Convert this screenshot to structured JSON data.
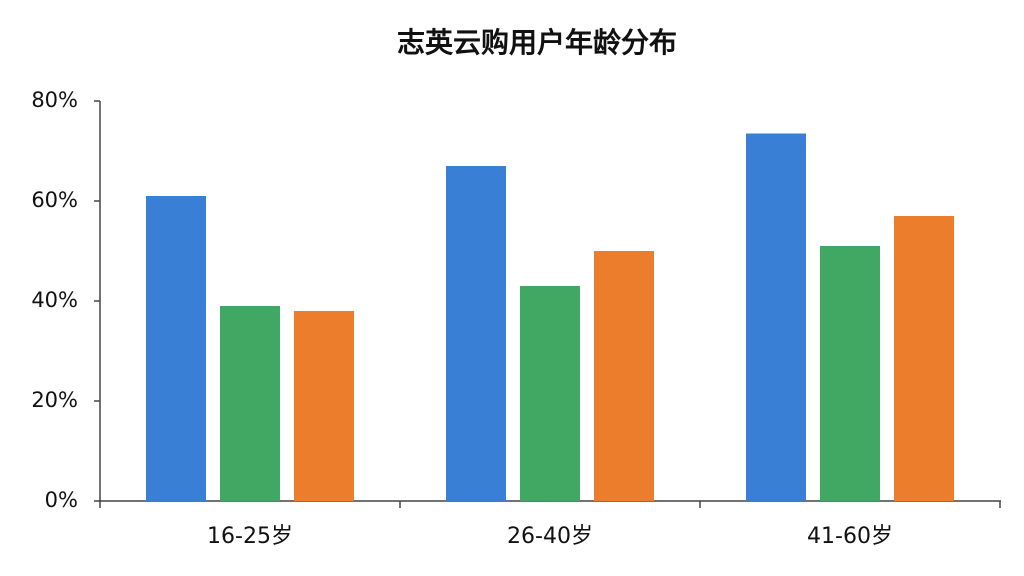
{
  "chart_data": {
    "type": "bar",
    "title": "志英云购用户年龄分布",
    "categories": [
      "16-25岁",
      "26-40岁",
      "41-60岁"
    ],
    "series": [
      {
        "color": "#3a7fd6",
        "values": [
          61,
          67,
          73.5
        ]
      },
      {
        "color": "#40a862",
        "values": [
          39,
          43,
          51
        ]
      },
      {
        "color": "#ec7d2c",
        "values": [
          38,
          50,
          57
        ]
      }
    ],
    "ylim": [
      0,
      80
    ],
    "yticks": [
      {
        "value": 0,
        "label": "0%"
      },
      {
        "value": 20,
        "label": "20%"
      },
      {
        "value": 40,
        "label": "40%"
      },
      {
        "value": 60,
        "label": "60%"
      },
      {
        "value": 80,
        "label": "80%"
      }
    ],
    "grid": false
  }
}
